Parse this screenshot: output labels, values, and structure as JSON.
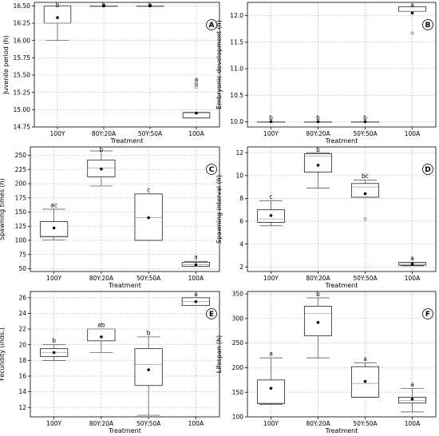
{
  "chart_data": [
    {
      "type": "box",
      "panel": "A",
      "xlabel": "Treatment",
      "ylabel": "Juvenile period (h)",
      "ylim": [
        14.75,
        16.55
      ],
      "yticks": [
        14.75,
        15.0,
        15.25,
        15.5,
        15.75,
        16.0,
        16.25,
        16.5
      ],
      "ytick_labels": [
        "14.75",
        "15.00",
        "15.25",
        "15.50",
        "15.75",
        "16.00",
        "16.25",
        "16.50"
      ],
      "grid": true,
      "categories": [
        "100Y",
        "80Y:20A",
        "50Y:50A",
        "100A"
      ],
      "boxes": [
        {
          "q1": 16.25,
          "median": 16.25,
          "q3": 16.5,
          "whisker_low": 16.0,
          "whisker_high": 16.5,
          "mean": 16.33,
          "outliers": [],
          "letter": "b"
        },
        {
          "q1": 16.5,
          "median": 16.5,
          "q3": 16.5,
          "whisker_low": 16.5,
          "whisker_high": 16.5,
          "mean": 16.5,
          "outliers": [],
          "letter": "b"
        },
        {
          "q1": 16.5,
          "median": 16.5,
          "q3": 16.5,
          "whisker_low": 16.5,
          "whisker_high": 16.5,
          "mean": 16.5,
          "outliers": [],
          "letter": "b"
        },
        {
          "q1": 14.88,
          "median": 14.95,
          "q3": 14.96,
          "whisker_low": 14.88,
          "whisker_high": 14.96,
          "mean": 14.95,
          "outliers": [
            15.33,
            15.36,
            15.38
          ],
          "letter": "a"
        }
      ]
    },
    {
      "type": "box",
      "panel": "B",
      "xlabel": "Treatment",
      "ylabel": "Embryonic development (h)",
      "ylim": [
        9.9,
        12.25
      ],
      "yticks": [
        10.0,
        10.5,
        11.0,
        11.5,
        12.0
      ],
      "ytick_labels": [
        "10.0",
        "10.5",
        "11.0",
        "11.5",
        "12.0"
      ],
      "grid": true,
      "categories": [
        "100Y",
        "80Y:20A",
        "50Y:50A",
        "100A"
      ],
      "boxes": [
        {
          "q1": 10.0,
          "median": 10.0,
          "q3": 10.0,
          "whisker_low": 10.0,
          "whisker_high": 10.0,
          "mean": 10.0,
          "outliers": [],
          "letter": "b"
        },
        {
          "q1": 10.0,
          "median": 10.0,
          "q3": 10.0,
          "whisker_low": 10.0,
          "whisker_high": 10.0,
          "mean": 10.0,
          "outliers": [],
          "letter": "b"
        },
        {
          "q1": 10.0,
          "median": 10.0,
          "q3": 10.0,
          "whisker_low": 10.0,
          "whisker_high": 10.0,
          "mean": 10.0,
          "outliers": [],
          "letter": "b"
        },
        {
          "q1": 12.08,
          "median": 12.08,
          "q3": 12.17,
          "whisker_low": 12.08,
          "whisker_high": 12.17,
          "mean": 12.05,
          "outliers": [
            11.67
          ],
          "letter": "a"
        }
      ]
    },
    {
      "type": "box",
      "panel": "C",
      "xlabel": "Treatment",
      "ylabel": "Spawning times (h)",
      "ylim": [
        45,
        265
      ],
      "yticks": [
        50,
        75,
        100,
        125,
        150,
        175,
        200,
        225,
        250
      ],
      "ytick_labels": [
        "50",
        "75",
        "100",
        "125",
        "150",
        "175",
        "200",
        "225",
        "250"
      ],
      "grid": true,
      "categories": [
        "100Y",
        "80Y:20A",
        "50Y:50A",
        "100A"
      ],
      "boxes": [
        {
          "q1": 106,
          "median": 108,
          "q3": 133,
          "whisker_low": 101,
          "whisker_high": 155,
          "mean": 122,
          "outliers": [],
          "letter": "ac"
        },
        {
          "q1": 212,
          "median": 228,
          "q3": 242,
          "whisker_low": 196,
          "whisker_high": 258,
          "mean": 226,
          "outliers": [],
          "letter": "b"
        },
        {
          "q1": 100,
          "median": 140,
          "q3": 182,
          "whisker_low": 100,
          "whisker_high": 182,
          "mean": 140,
          "outliers": [],
          "letter": "c"
        },
        {
          "q1": 54,
          "median": 57,
          "q3": 61,
          "whisker_low": 54,
          "whisker_high": 63,
          "mean": 57,
          "outliers": [],
          "letter": "a"
        }
      ]
    },
    {
      "type": "box",
      "panel": "D",
      "xlabel": "Treatment",
      "ylabel": "Spawning interval (h)",
      "ylim": [
        1.6,
        12.5
      ],
      "yticks": [
        2,
        4,
        6,
        8,
        10,
        12
      ],
      "ytick_labels": [
        "2",
        "4",
        "6",
        "8",
        "10",
        "12"
      ],
      "grid": true,
      "categories": [
        "100Y",
        "80Y:20A",
        "50Y:50A",
        "100A"
      ],
      "boxes": [
        {
          "q1": 5.9,
          "median": 6.2,
          "q3": 7.0,
          "whisker_low": 5.6,
          "whisker_high": 7.8,
          "mean": 6.5,
          "outliers": [],
          "letter": "c"
        },
        {
          "q1": 10.3,
          "median": 11.7,
          "q3": 11.9,
          "whisker_low": 8.9,
          "whisker_high": 12.0,
          "mean": 10.9,
          "outliers": [],
          "letter": "b"
        },
        {
          "q1": 8.1,
          "median": 9.0,
          "q3": 9.3,
          "whisker_low": 8.1,
          "whisker_high": 9.6,
          "mean": 8.4,
          "outliers": [
            6.2
          ],
          "letter": "bc"
        },
        {
          "q1": 2.15,
          "median": 2.25,
          "q3": 2.4,
          "whisker_low": 2.1,
          "whisker_high": 2.4,
          "mean": 2.25,
          "outliers": [],
          "letter": "a"
        }
      ]
    },
    {
      "type": "box",
      "panel": "E",
      "xlabel": "Treatment",
      "ylabel": "Fecundity (inds.)",
      "ylim": [
        10.8,
        26.8
      ],
      "yticks": [
        12,
        14,
        16,
        18,
        20,
        22,
        24,
        26
      ],
      "ytick_labels": [
        "12",
        "14",
        "16",
        "18",
        "20",
        "22",
        "24",
        "26"
      ],
      "grid": true,
      "categories": [
        "100Y",
        "80Y:20A",
        "50Y:50A",
        "100A"
      ],
      "boxes": [
        {
          "q1": 18.5,
          "median": 19.0,
          "q3": 19.5,
          "whisker_low": 18.0,
          "whisker_high": 20.0,
          "mean": 19.0,
          "outliers": [],
          "letter": "b"
        },
        {
          "q1": 20.5,
          "median": 22.0,
          "q3": 22.0,
          "whisker_low": 19.0,
          "whisker_high": 22.0,
          "mean": 21.0,
          "outliers": [],
          "letter": "ab"
        },
        {
          "q1": 14.8,
          "median": 17.5,
          "q3": 19.5,
          "whisker_low": 11.0,
          "whisker_high": 21.0,
          "mean": 16.8,
          "outliers": [],
          "letter": "b"
        },
        {
          "q1": 25.0,
          "median": 25.5,
          "q3": 26.0,
          "whisker_low": 25.0,
          "whisker_high": 26.0,
          "mean": 25.5,
          "outliers": [],
          "letter": "a"
        }
      ]
    },
    {
      "type": "box",
      "panel": "F",
      "xlabel": "Treatment",
      "ylabel": "Lifespan (h)",
      "ylim": [
        100,
        355
      ],
      "yticks": [
        100,
        150,
        200,
        250,
        300,
        350
      ],
      "ytick_labels": [
        "100",
        "150",
        "200",
        "250",
        "300",
        "350"
      ],
      "grid": true,
      "categories": [
        "100Y",
        "80Y:20A",
        "50Y:50A",
        "100A"
      ],
      "boxes": [
        {
          "q1": 127,
          "median": 128,
          "q3": 175,
          "whisker_low": 125,
          "whisker_high": 220,
          "mean": 158,
          "outliers": [],
          "letter": "a"
        },
        {
          "q1": 265,
          "median": 310,
          "q3": 325,
          "whisker_low": 220,
          "whisker_high": 342,
          "mean": 292,
          "outliers": [],
          "letter": "b"
        },
        {
          "q1": 140,
          "median": 168,
          "q3": 202,
          "whisker_low": 140,
          "whisker_high": 210,
          "mean": 172,
          "outliers": [],
          "letter": "a"
        },
        {
          "q1": 128,
          "median": 133,
          "q3": 140,
          "whisker_low": 110,
          "whisker_high": 158,
          "mean": 136,
          "outliers": [],
          "letter": "a"
        }
      ]
    }
  ]
}
